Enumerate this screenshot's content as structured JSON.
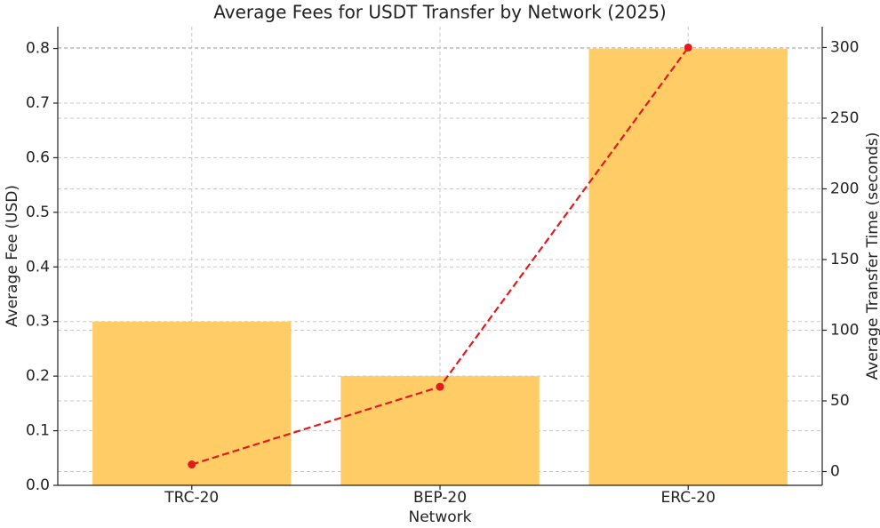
{
  "chart_data": {
    "type": "bar",
    "title": "Average Fees for USDT Transfer by Network (2025)",
    "x_label": "Network",
    "y_label": "Average Fee (USD)",
    "y2_label": "Average Transfer Time (seconds)",
    "categories": [
      "TRC-20",
      "BEP-20",
      "ERC-20"
    ],
    "series": [
      {
        "type": "bar",
        "color": "#ffcc66",
        "values": [
          0.3,
          0.2,
          0.8
        ]
      },
      {
        "type": "line",
        "axis": "y2",
        "color": "#e31a1c",
        "values": [
          5,
          60,
          300
        ]
      }
    ],
    "ylim": [
      0,
      0.84
    ],
    "yticks": [
      {
        "value": 0,
        "label": "0.0"
      },
      0.1,
      0.2,
      0.3,
      0.4,
      0.5,
      0.6,
      0.7,
      0.8
    ],
    "y2lim": [
      -9.75,
      314.75
    ],
    "y2ticks": [
      0,
      50,
      100,
      150,
      200,
      250,
      300
    ],
    "grid": true
  }
}
